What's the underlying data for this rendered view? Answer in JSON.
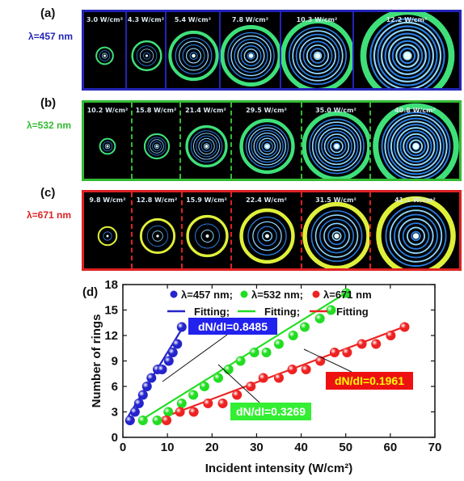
{
  "panels": [
    {
      "label": "(a)",
      "wavelength": "λ=457 nm",
      "color": "#2424b8",
      "separator": "solid",
      "intensities": [
        "3.0 W/cm²",
        "4.3 W/cm²",
        "5.4 W/cm²",
        "7.8 W/cm²",
        "10.3 W/cm²",
        "12.2 W/cm²"
      ]
    },
    {
      "label": "(b)",
      "wavelength": "λ=532 nm",
      "color": "#33bb33",
      "separator": "dashed",
      "intensities": [
        "10.2 W/cm²",
        "15.8 W/cm²",
        "21.4 W/cm²",
        "29.5 W/cm²",
        "35.0 W/cm²",
        "40.8 W/cm²"
      ]
    },
    {
      "label": "(c)",
      "wavelength": "λ=671 nm",
      "color": "#dd2222",
      "separator": "dashed",
      "intensities": [
        "9.8 W/cm²",
        "12.8 W/cm²",
        "15.9 W/cm²",
        "22.4 W/cm²",
        "31.5 W/cm²",
        "41.1 W/cm²"
      ]
    }
  ],
  "chart_data": {
    "type": "scatter",
    "panel_label": "(d)",
    "xlabel": "Incident intensity (W/cm²)",
    "ylabel": "Number of rings",
    "xlim": [
      0,
      70
    ],
    "ylim": [
      0,
      18
    ],
    "xticks": [
      0,
      10,
      20,
      30,
      40,
      50,
      60,
      70
    ],
    "yticks": [
      0,
      3,
      6,
      9,
      12,
      15,
      18
    ],
    "legend_position": "top-right",
    "series": [
      {
        "name": "λ=457 nm;",
        "fit_name": "Fitting;",
        "color": "#2424cc",
        "x": [
          1.6,
          2.7,
          3.6,
          4.5,
          5.4,
          6.4,
          7.8,
          8.8,
          10.3,
          11.2,
          12.2,
          13.2
        ],
        "y": [
          2,
          3,
          4,
          5,
          6,
          7,
          8,
          8,
          9,
          10,
          11,
          13
        ],
        "fit": {
          "x": [
            1,
            13.5
          ],
          "y": [
            2.3,
            13
          ]
        },
        "slope_label": "dN/dI=0.8485",
        "slope_label_bg": "#2222ee",
        "slope_label_color": "#ffffff"
      },
      {
        "name": "λ=532 nm;",
        "fit_name": "Fitting;",
        "color": "#22dd22",
        "x": [
          4.5,
          7.7,
          10.2,
          13.2,
          15.8,
          18.3,
          21.4,
          23.7,
          26.4,
          29.5,
          32.2,
          35.0,
          38.2,
          40.8,
          44.2,
          46.7,
          50.1
        ],
        "y": [
          2,
          2,
          3,
          4,
          5,
          6,
          7,
          8,
          9,
          10,
          10,
          11,
          12,
          13,
          14,
          15,
          17
        ],
        "fit": {
          "x": [
            4,
            50
          ],
          "y": [
            2,
            17
          ]
        },
        "slope_label": "dN/dI=0.3269",
        "slope_label_bg": "#33ee33",
        "slope_label_color": "#ffffff"
      },
      {
        "name": "λ=671 nm",
        "fit_name": "Fitting",
        "color": "#ee2222",
        "x": [
          9.8,
          12.8,
          15.9,
          19.1,
          22.4,
          25.6,
          28.7,
          31.5,
          35.0,
          38.0,
          41.1,
          44.3,
          47.5,
          50.3,
          53.6,
          56.8,
          60.1,
          63.2
        ],
        "y": [
          2,
          3,
          3,
          4,
          4,
          5,
          6,
          7,
          7,
          8,
          8,
          9,
          10,
          10,
          11,
          11,
          12,
          13
        ],
        "fit": {
          "x": [
            8.8,
            63.5
          ],
          "y": [
            2.3,
            13.1
          ]
        },
        "slope_label": "dN/dI=0.1961",
        "slope_label_bg": "#ee1111",
        "slope_label_color": "#ffff00"
      }
    ]
  }
}
